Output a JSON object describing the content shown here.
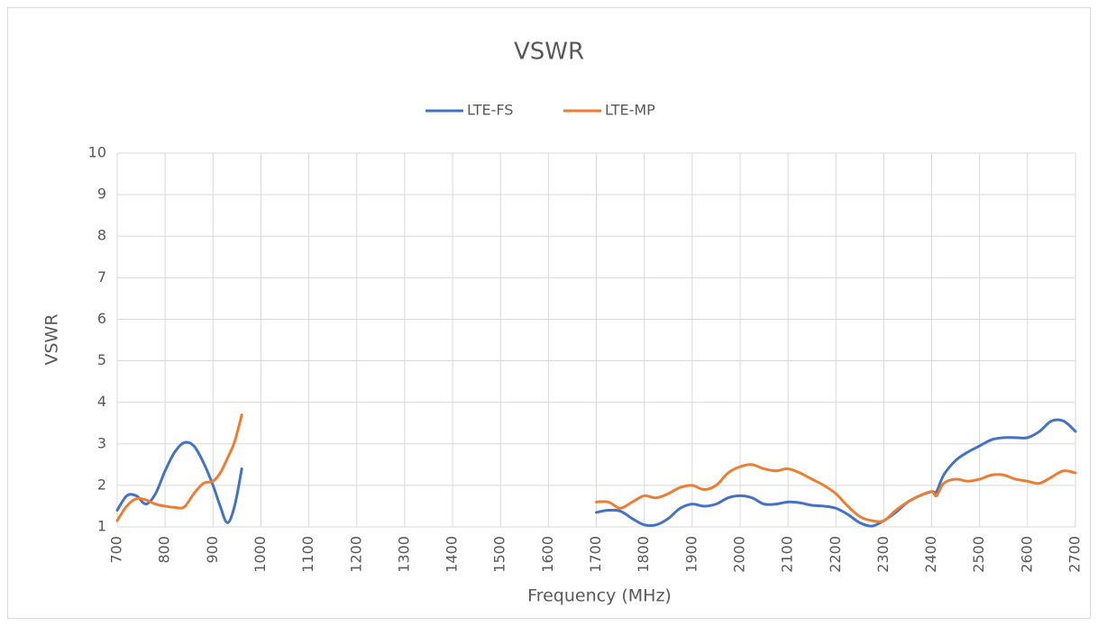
{
  "chart_data": {
    "type": "line",
    "title": "VSWR",
    "x_label": "Frequency (MHz)",
    "y_label": "VSWR",
    "x": [
      700,
      720,
      740,
      760,
      780,
      800,
      820,
      840,
      860,
      880,
      900,
      915,
      930,
      945,
      960,
      1000,
      1700,
      1725,
      1750,
      1775,
      1800,
      1825,
      1850,
      1875,
      1900,
      1925,
      1950,
      1975,
      2000,
      2025,
      2050,
      2075,
      2100,
      2125,
      2150,
      2175,
      2200,
      2225,
      2250,
      2275,
      2300,
      2325,
      2350,
      2375,
      2400,
      2410,
      2425,
      2450,
      2475,
      2500,
      2525,
      2550,
      2575,
      2600,
      2625,
      2650,
      2675,
      2700
    ],
    "series": [
      {
        "name": "LTE-FS",
        "color": "#4472c4",
        "values": [
          1.4,
          1.75,
          1.75,
          1.55,
          1.8,
          2.35,
          2.8,
          3.03,
          2.95,
          2.55,
          2.0,
          1.5,
          1.1,
          1.5,
          2.4,
          null,
          1.35,
          1.4,
          1.38,
          1.2,
          1.05,
          1.05,
          1.2,
          1.45,
          1.55,
          1.5,
          1.55,
          1.7,
          1.75,
          1.7,
          1.55,
          1.55,
          1.6,
          1.58,
          1.52,
          1.5,
          1.45,
          1.3,
          1.1,
          1.02,
          1.15,
          1.35,
          1.6,
          1.75,
          1.85,
          1.85,
          2.25,
          2.6,
          2.8,
          2.95,
          3.1,
          3.15,
          3.15,
          3.15,
          3.3,
          3.55,
          3.55,
          3.3
        ]
      },
      {
        "name": "LTE-MP",
        "color": "#ed7d31",
        "values": [
          1.15,
          1.5,
          1.68,
          1.65,
          1.55,
          1.5,
          1.47,
          1.48,
          1.8,
          2.05,
          2.1,
          2.3,
          2.65,
          3.05,
          3.7,
          null,
          1.6,
          1.6,
          1.45,
          1.6,
          1.75,
          1.7,
          1.8,
          1.95,
          2.0,
          1.9,
          2.0,
          2.3,
          2.45,
          2.5,
          2.4,
          2.35,
          2.4,
          2.3,
          2.15,
          2.0,
          1.8,
          1.5,
          1.25,
          1.15,
          1.15,
          1.4,
          1.6,
          1.75,
          1.85,
          1.75,
          2.05,
          2.15,
          2.1,
          2.15,
          2.25,
          2.25,
          2.15,
          2.1,
          2.05,
          2.2,
          2.35,
          2.3
        ]
      }
    ],
    "xlim": [
      700,
      2700
    ],
    "xticks": [
      700,
      800,
      900,
      1000,
      1100,
      1200,
      1300,
      1400,
      1500,
      1600,
      1700,
      1800,
      1900,
      2000,
      2100,
      2200,
      2300,
      2400,
      2500,
      2600,
      2700
    ],
    "ylim": [
      1,
      10
    ],
    "yticks": [
      1,
      2,
      3,
      4,
      5,
      6,
      7,
      8,
      9,
      10
    ],
    "grid": true,
    "legend": "top"
  }
}
